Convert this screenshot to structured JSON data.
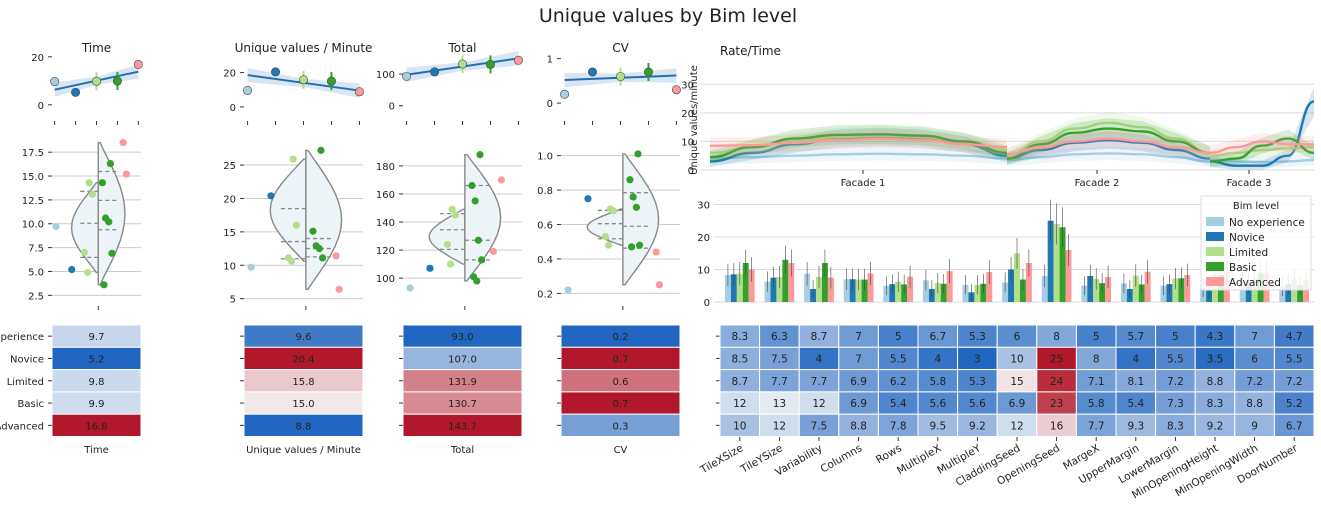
{
  "title": "Unique values by Bim level",
  "levels": [
    "No experience",
    "Novice",
    "Limited",
    "Basic",
    "Advanced"
  ],
  "legend": {
    "title": "Bim level",
    "entries": [
      "No experience",
      "Novice",
      "Limited",
      "Basic",
      "Advanced"
    ]
  },
  "colors": {
    "level": [
      "#a6cee3",
      "#1f78b4",
      "#b2df8a",
      "#33a02c",
      "#fb9a99"
    ],
    "heat_low": "#2166c1",
    "heat_mid": "#f7f7f7",
    "heat_high": "#b2182b",
    "violin_fill": "#eef5f9",
    "violin_stroke": "#888888"
  },
  "chart_data": [
    {
      "type": "line",
      "id": "time",
      "title": "Time",
      "x": [
        0,
        1,
        2,
        3,
        4
      ],
      "y": [
        9.7,
        5.2,
        9.8,
        9.9,
        16.8
      ],
      "ylim": [
        -3,
        22
      ],
      "yticks": [
        0,
        20
      ],
      "fit": [
        6.3,
        13.8
      ],
      "violin": {
        "ylim": [
          1.8,
          19.3
        ],
        "yticks": [
          2.5,
          5.0,
          7.5,
          10.0,
          12.5,
          15.0,
          17.5
        ],
        "points": [
          [
            0,
            9.7
          ],
          [
            1,
            5.2
          ],
          [
            2,
            14.3
          ],
          [
            2,
            13.1
          ],
          [
            2,
            7.0
          ],
          [
            2,
            4.9
          ],
          [
            3,
            16.3
          ],
          [
            3,
            14.3
          ],
          [
            3,
            10.6
          ],
          [
            3,
            10.2
          ],
          [
            3,
            6.9
          ],
          [
            3,
            3.6
          ],
          [
            4,
            18.5
          ],
          [
            4,
            15.2
          ]
        ]
      },
      "heatmap": {
        "xlabel": "Time",
        "values": [
          9.7,
          5.2,
          9.8,
          9.9,
          16.8
        ],
        "range": [
          5.2,
          16.8
        ]
      }
    },
    {
      "type": "line",
      "id": "upm",
      "title": "Unique values / Minute",
      "x": [
        0,
        1,
        2,
        3,
        4
      ],
      "y": [
        9.6,
        20.4,
        15.8,
        15.0,
        8.8
      ],
      "ylim": [
        -3,
        32
      ],
      "yticks": [
        0,
        20
      ],
      "fit": [
        18.5,
        9.5
      ],
      "violin": {
        "ylim": [
          4.5,
          29.5
        ],
        "yticks": [
          5,
          10,
          15,
          20,
          25
        ],
        "points": [
          [
            0,
            9.7
          ],
          [
            1,
            20.4
          ],
          [
            2,
            25.9
          ],
          [
            2,
            16.0
          ],
          [
            2,
            11.1
          ],
          [
            2,
            10.6
          ],
          [
            3,
            27.2
          ],
          [
            3,
            15.1
          ],
          [
            3,
            12.9
          ],
          [
            3,
            12.5
          ],
          [
            3,
            11.1
          ],
          [
            4,
            11.4
          ],
          [
            4,
            6.4
          ]
        ]
      },
      "heatmap": {
        "xlabel": "Unique values / Minute",
        "values": [
          9.6,
          20.4,
          15.8,
          15.0,
          8.8
        ],
        "range": [
          8.8,
          20.4
        ]
      }
    },
    {
      "type": "line",
      "id": "total",
      "title": "Total",
      "x": [
        0,
        1,
        2,
        3,
        4
      ],
      "y": [
        93.0,
        107.0,
        131.9,
        130.7,
        143.7
      ],
      "ylim": [
        -20,
        170
      ],
      "yticks": [
        0,
        100
      ],
      "fit": [
        98,
        150
      ],
      "violin": {
        "ylim": [
          83,
          202
        ],
        "yticks": [
          100,
          120,
          140,
          160,
          180
        ],
        "points": [
          [
            0,
            93
          ],
          [
            1,
            107
          ],
          [
            2,
            149
          ],
          [
            2,
            145
          ],
          [
            2,
            124
          ],
          [
            2,
            110
          ],
          [
            3,
            188
          ],
          [
            3,
            166
          ],
          [
            3,
            155
          ],
          [
            3,
            127
          ],
          [
            3,
            113
          ],
          [
            3,
            101
          ],
          [
            3,
            98
          ],
          [
            4,
            170
          ],
          [
            4,
            119
          ]
        ]
      },
      "heatmap": {
        "xlabel": "Total",
        "values": [
          93.0,
          107.0,
          131.9,
          130.7,
          143.7
        ],
        "range": [
          93.0,
          143.7
        ]
      }
    },
    {
      "type": "line",
      "id": "cv",
      "title": "CV",
      "x": [
        0,
        1,
        2,
        3,
        4
      ],
      "y": [
        0.2,
        0.7,
        0.6,
        0.7,
        0.3
      ],
      "ylim": [
        -0.2,
        1.15
      ],
      "yticks": [
        0,
        1
      ],
      "fit": [
        0.52,
        0.62
      ],
      "violin": {
        "ylim": [
          0.15,
          1.12
        ],
        "yticks": [
          0.2,
          0.4,
          0.6,
          0.8,
          1.0
        ],
        "points": [
          [
            0,
            0.22
          ],
          [
            1,
            0.75
          ],
          [
            2,
            0.69
          ],
          [
            2,
            0.68
          ],
          [
            2,
            0.53
          ],
          [
            2,
            0.48
          ],
          [
            3,
            1.01
          ],
          [
            3,
            0.86
          ],
          [
            3,
            0.76
          ],
          [
            3,
            0.7
          ],
          [
            3,
            0.48
          ],
          [
            3,
            0.47
          ],
          [
            4,
            0.44
          ],
          [
            4,
            0.25
          ]
        ]
      },
      "heatmap": {
        "xlabel": "CV",
        "values": [
          0.2,
          0.7,
          0.6,
          0.7,
          0.3
        ],
        "range": [
          0.2,
          0.7
        ]
      }
    },
    {
      "type": "line",
      "id": "rate",
      "title": "Rate/Time",
      "ylabel": "Unique values/minute",
      "categories": [
        "Facade 1",
        "Facade 2",
        "Facade 3"
      ],
      "ylim": [
        0,
        35
      ],
      "yticks": [
        0,
        10,
        20,
        30
      ],
      "series": [
        {
          "name": "No experience",
          "segments": [
            [
              4,
              4.5,
              5,
              5.5,
              5.7,
              5.5,
              5,
              4
            ],
            [
              3.5,
              4.5,
              5.5,
              5.8,
              5.5,
              4.5,
              3
            ],
            [
              3.5,
              3,
              2.8,
              3,
              3.5
            ]
          ]
        },
        {
          "name": "Novice",
          "segments": [
            [
              3,
              6,
              9,
              11,
              11.5,
              11,
              9,
              5
            ],
            [
              4,
              7,
              9.5,
              10.5,
              9.5,
              7,
              4
            ],
            [
              3,
              1.5,
              1.5,
              5,
              24
            ]
          ]
        },
        {
          "name": "Limited",
          "segments": [
            [
              6,
              8,
              10,
              11.5,
              12,
              11.5,
              10,
              7
            ],
            [
              5,
              10,
              14.5,
              16.5,
              15,
              11,
              6
            ],
            [
              5,
              6,
              7,
              7.5,
              8
            ]
          ]
        },
        {
          "name": "Basic",
          "segments": [
            [
              4.5,
              8,
              11,
              12.3,
              12.5,
              12,
              10,
              6
            ],
            [
              4,
              9,
              13,
              14.5,
              13.5,
              10,
              6
            ],
            [
              3,
              4,
              8.5,
              11,
              6
            ]
          ]
        },
        {
          "name": "Advanced",
          "segments": [
            [
              8.5,
              8.7,
              9.5,
              10.5,
              11,
              10.5,
              9,
              8
            ],
            [
              5.5,
              8,
              10,
              11,
              10,
              8,
              6
            ],
            [
              6,
              8,
              10,
              9,
              9
            ]
          ]
        }
      ]
    },
    {
      "type": "bar",
      "id": "params",
      "categories": [
        "TileXSize",
        "TileYSize",
        "Variability",
        "Columns",
        "Rows",
        "MultipleX",
        "MultipleY",
        "CladdingSeed",
        "OpeningSeed",
        "MargeX",
        "UpperMargin",
        "LowerMargin",
        "MinOpeningHeight",
        "MinOpeningWidth",
        "DoorNumber"
      ],
      "ylim": [
        0,
        32
      ],
      "yticks": [
        0,
        10,
        20,
        30
      ],
      "series": [
        {
          "name": "No experience",
          "values": [
            8.3,
            6.3,
            8.7,
            7,
            5,
            6.7,
            5.3,
            6,
            8,
            5,
            5.7,
            5,
            4.3,
            7,
            4.7
          ]
        },
        {
          "name": "Novice",
          "values": [
            8.5,
            7.5,
            4,
            7,
            5.5,
            4,
            3,
            10,
            25,
            8,
            4,
            5.5,
            3.5,
            6,
            5.5
          ]
        },
        {
          "name": "Limited",
          "values": [
            8.7,
            7.7,
            7.7,
            6.9,
            6.2,
            5.8,
            5.3,
            15,
            24,
            7.1,
            8.1,
            7.2,
            8.8,
            7.2,
            7.2
          ]
        },
        {
          "name": "Basic",
          "values": [
            12,
            13,
            12,
            6.9,
            5.4,
            5.6,
            5.6,
            6.9,
            23,
            5.8,
            5.4,
            7.3,
            8.3,
            8.8,
            5.2
          ]
        },
        {
          "name": "Advanced",
          "values": [
            10,
            12,
            7.5,
            8.8,
            7.8,
            9.5,
            9.2,
            12,
            16,
            7.7,
            9.3,
            8.3,
            9.2,
            9,
            6.7
          ]
        }
      ],
      "heatmap": {
        "labels": [
          [
            "8.3",
            "6.3",
            "8.7",
            "7",
            "5",
            "6.7",
            "5.3",
            "6",
            "8",
            "5",
            "5.7",
            "5",
            "4.3",
            "7",
            "4.7"
          ],
          [
            "8.5",
            "7.5",
            "4",
            "7",
            "5.5",
            "4",
            "3",
            "10",
            "25",
            "8",
            "4",
            "5.5",
            "3.5",
            "6",
            "5.5"
          ],
          [
            "8.7",
            "7.7",
            "7.7",
            "6.9",
            "6.2",
            "5.8",
            "5.3",
            "15",
            "24",
            "7.1",
            "8.1",
            "7.2",
            "8.8",
            "7.2",
            "7.2"
          ],
          [
            "12",
            "13",
            "12",
            "6.9",
            "5.4",
            "5.6",
            "5.6",
            "6.9",
            "23",
            "5.8",
            "5.4",
            "7.3",
            "8.3",
            "8.8",
            "5.2"
          ],
          [
            "10",
            "12",
            "7.5",
            "8.8",
            "7.8",
            "9.5",
            "9.2",
            "12",
            "16",
            "7.7",
            "9.3",
            "8.3",
            "9.2",
            "9",
            "6.7"
          ]
        ],
        "range": [
          3,
          25
        ]
      }
    }
  ]
}
